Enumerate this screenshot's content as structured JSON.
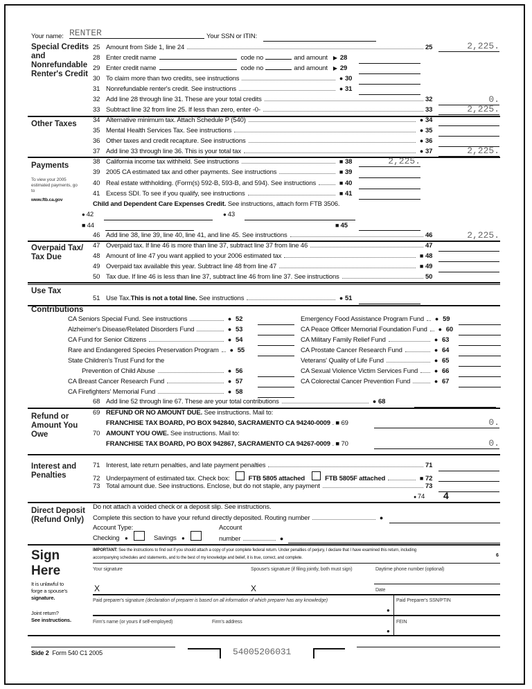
{
  "header": {
    "name_label": "Your name:",
    "name_value": "RENTER",
    "ssn_label": "Your SSN or ITIN:",
    "ssn_value": ""
  },
  "sections": {
    "special_credits": "Special Credits and Nonrefundable Renter's Credit",
    "other_taxes": "Other Taxes",
    "payments": "Payments",
    "payments_note": "To view your 2005 estimated payments, go to",
    "payments_url": "www.ftb.ca.gov",
    "overpaid": "Overpaid Tax/ Tax Due",
    "use_tax": "Use Tax",
    "contributions": "Contributions",
    "refund": "Refund or Amount You Owe",
    "interest": "Interest and Penalties",
    "direct_deposit": "Direct Deposit (Refund Only)",
    "sign": "Sign Here"
  },
  "lines": {
    "25": {
      "num": "25",
      "text": "Amount from Side 1, line 24",
      "value": "2,225."
    },
    "28": {
      "num": "28",
      "text": "Enter credit name",
      "code": "code no",
      "amount": "and amount"
    },
    "29": {
      "num": "29",
      "text": "Enter credit name",
      "code": "code no",
      "amount": "and amount"
    },
    "30": {
      "num": "30",
      "text": "To claim more than two credits, see instructions"
    },
    "31": {
      "num": "31",
      "text": "Nonrefundable renter's credit. See instructions"
    },
    "32": {
      "num": "32",
      "text": "Add line 28 through line 31. These are your total credits",
      "value": "0."
    },
    "33": {
      "num": "33",
      "text": "Subtract line 32 from line 25. If less than zero, enter -0-",
      "value": "2,225."
    },
    "34": {
      "num": "34",
      "text": "Alternative minimum tax. Attach Schedule P (540)"
    },
    "35": {
      "num": "35",
      "text": "Mental Health Services Tax. See instructions"
    },
    "36": {
      "num": "36",
      "text": "Other taxes and credit recapture. See instructions"
    },
    "37": {
      "num": "37",
      "text": "Add line 33 through line 36. This is your total tax",
      "value": "2,225."
    },
    "38": {
      "num": "38",
      "text": "California income tax withheld. See instructions",
      "value": "2,225."
    },
    "39": {
      "num": "39",
      "text": "2005 CA estimated tax and other payments. See instructions"
    },
    "40": {
      "num": "40",
      "text": "Real estate withholding. (Form(s) 592-B, 593-B, and 594). See instructions"
    },
    "41": {
      "num": "41",
      "text": "Excess SDI. To see if you qualify, see instructions"
    },
    "childcare_bold": "Child and Dependent Care Expenses Credit.",
    "childcare_rest": " See instructions, attach form FTB 3506.",
    "42": {
      "num": "42"
    },
    "43": {
      "num": "43"
    },
    "44": {
      "num": "44"
    },
    "45": {
      "num": "45"
    },
    "46": {
      "num": "46",
      "text": "Add line 38, line 39, line 40, line 41, and line 45. See instructions",
      "value": "2,225."
    },
    "47": {
      "num": "47",
      "text": "Overpaid tax. If line 46 is more than line 37, subtract line 37 from line 46"
    },
    "48": {
      "num": "48",
      "text": "Amount of line 47 you want applied to your 2006 estimated tax"
    },
    "49": {
      "num": "49",
      "text": "Overpaid tax available this year. Subtract line 48 from line 47"
    },
    "50": {
      "num": "50",
      "text": "Tax due. If line 46 is less than line 37, subtract line 46 from line 37. See instructions"
    },
    "51": {
      "num": "51",
      "text_a": "Use Tax. ",
      "text_bold": "This is not a total line.",
      "text_b": " See instructions"
    },
    "68": {
      "num": "68",
      "text": "Add line 52 through line 67. These are your total contributions"
    },
    "69": {
      "num": "69",
      "bold": "REFUND OR NO AMOUNT DUE.",
      "text": " See instructions. Mail to:",
      "address": "FRANCHISE TAX BOARD, PO BOX 942840, SACRAMENTO CA 94240-0009",
      "value": "0."
    },
    "70": {
      "num": "70",
      "bold": "AMOUNT YOU OWE.",
      "text": " See instructions. Mail to:",
      "address": "FRANCHISE TAX BOARD, PO BOX 942867, SACRAMENTO CA 94267-0009",
      "value": "0."
    },
    "71": {
      "num": "71",
      "text": "Interest, late return penalties, and late payment penalties"
    },
    "72": {
      "num": "72",
      "text": "Underpayment of estimated tax. Check box:",
      "box1": "FTB 5805 attached",
      "box2": "FTB 5805F attached"
    },
    "73": {
      "num": "73",
      "text": "Total amount due. See instructions. Enclose, but do not staple, any payment"
    },
    "74": {
      "num": "74",
      "value": "4"
    }
  },
  "contributions": {
    "left": [
      {
        "label": "CA Seniors Special Fund. See instructions",
        "num": "52"
      },
      {
        "label": "Alzheimer's Disease/Related Disorders Fund",
        "num": "53"
      },
      {
        "label": "CA Fund for Senior Citizens",
        "num": "54"
      },
      {
        "label": "Rare and Endangered Species Preservation Program",
        "num": "55"
      },
      {
        "label": "State Children's Trust Fund for the",
        "num": ""
      },
      {
        "label": "Prevention of Child Abuse",
        "num": "56"
      },
      {
        "label": "CA Breast Cancer Research Fund",
        "num": "57"
      },
      {
        "label": "CA Firefighters' Memorial Fund",
        "num": "58"
      }
    ],
    "right": [
      {
        "label": "Emergency Food Assistance Program Fund",
        "num": "59"
      },
      {
        "label": "CA Peace Officer Memorial Foundation Fund",
        "num": "60"
      },
      {
        "label": "CA Military Family Relief Fund",
        "num": "63"
      },
      {
        "label": "CA Prostate Cancer Research Fund",
        "num": "64"
      },
      {
        "label": "Veterans' Quality of Life Fund",
        "num": "65"
      },
      {
        "label": "CA Sexual Violence Victim Services Fund",
        "num": "66"
      },
      {
        "label": "CA Colorectal Cancer Prevention Fund",
        "num": "67"
      }
    ]
  },
  "direct_deposit": {
    "line1": "Do not attach a voided check or a deposit slip. See instructions.",
    "line2": "Complete this section to have your refund directly deposited.  Routing number",
    "account_type": "Account Type:",
    "checking": "Checking",
    "savings": "Savings",
    "account": "Account",
    "number": "number"
  },
  "sign": {
    "important_bold": "IMPORTANT:",
    "important_1": " See the instructions to find out if you should attach a copy of your complete federal return. Under penalties of perjury, I declare that I have examined this return, including",
    "important_2": "accompanying schedules and statements, and to the best of my knowledge and belief, it is true, correct, and complete.",
    "code": "6",
    "your_signature": "Your signature",
    "spouse_signature": "Spouse's signature (if filing jointly, both must sign)",
    "phone": "Daytime phone number (optional)",
    "x1": "X",
    "x2": "X",
    "date": "Date",
    "preparer": "Paid preparer's signature",
    "preparer_note": "(declaration of preparer is based on all information of which preparer has any knowledge)",
    "ssn_ptin": "Paid Preparer's SSN/PTIN",
    "firm_name": "Firm's name (or yours if self-employed)",
    "firm_address": "Firm's address",
    "fein": "FEIN",
    "warn_1": "It is unlawful to",
    "warn_2": "forge a spouse's",
    "warn_3": "signature.",
    "joint_1": "Joint return?",
    "joint_2": "See instructions."
  },
  "footer": {
    "side": "Side 2",
    "form": "Form 540  C1 2005",
    "barcode": "54005206031"
  }
}
